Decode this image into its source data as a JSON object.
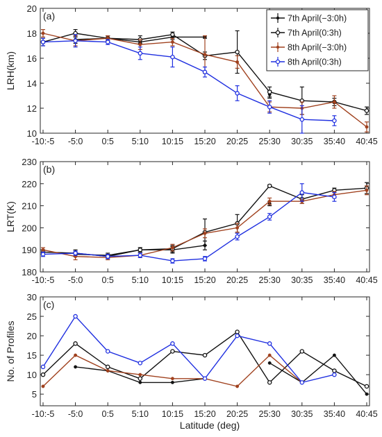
{
  "figure": {
    "xlabel": "Latitude (deg)",
    "categories": [
      "-10:-5",
      "-5:0",
      "0:5",
      "5:10",
      "10:15",
      "15:20",
      "20:25",
      "25:30",
      "30:35",
      "35:40",
      "40:45"
    ]
  },
  "colors": {
    "black": "#111111",
    "brown": "#a0411e",
    "blue": "#1f2fe0"
  },
  "legend": {
    "position": "top-right",
    "entries": [
      "7th April(−3:0h)",
      "7th April(0:3h)",
      "8th April(−3:0h)",
      "8th April(0:3h)"
    ]
  },
  "chart_data": [
    {
      "type": "line",
      "panel_label": "(a)",
      "ylabel": "LRH(km)",
      "ylim": [
        10,
        20
      ],
      "yticks": [
        10,
        12,
        14,
        16,
        18,
        20
      ],
      "categories": [
        "-10:-5",
        "-5:0",
        "0:5",
        "5:10",
        "10:15",
        "15:20",
        "20:25",
        "25:30",
        "30:35",
        "35:40",
        "40:45"
      ],
      "series": [
        {
          "name": "7th April(−3:0h)",
          "color": "black",
          "marker": "dot",
          "values": [
            null,
            17.5,
            17.6,
            17.3,
            17.7,
            17.7,
            null,
            13.1,
            null,
            null,
            null
          ],
          "errors": [
            null,
            0.3,
            0.2,
            0.2,
            0.2,
            0.1,
            null,
            0.3,
            null,
            null,
            null
          ]
        },
        {
          "name": "7th April(0:3h)",
          "color": "black",
          "marker": "circle",
          "values": [
            17.3,
            18.0,
            17.6,
            17.5,
            17.9,
            16.2,
            16.5,
            13.3,
            12.6,
            12.5,
            11.8
          ],
          "errors": [
            0.3,
            0.3,
            0.2,
            0.3,
            0.2,
            0.3,
            1.7,
            0.4,
            1.1,
            0.3,
            0.3
          ]
        },
        {
          "name": "8th April(−3:0h)",
          "color": "brown",
          "marker": "dot",
          "values": [
            18.0,
            17.4,
            17.6,
            17.1,
            17.3,
            16.3,
            15.7,
            12.1,
            12.0,
            12.5,
            10.5
          ],
          "errors": [
            0.3,
            0.4,
            0.2,
            0.4,
            0.3,
            1.5,
            0.5,
            0.4,
            0.5,
            0.5,
            0.4
          ]
        },
        {
          "name": "8th April(0:3h)",
          "color": "blue",
          "marker": "circle",
          "values": [
            17.3,
            17.4,
            17.3,
            16.4,
            16.1,
            14.9,
            13.2,
            12.1,
            11.1,
            11.0,
            null
          ],
          "errors": [
            0.3,
            0.5,
            0.2,
            0.5,
            0.8,
            0.4,
            0.6,
            0.5,
            1.1,
            0.4,
            null
          ]
        }
      ]
    },
    {
      "type": "line",
      "panel_label": "(b)",
      "ylabel": "LRT(K)",
      "ylim": [
        180,
        230
      ],
      "yticks": [
        180,
        190,
        200,
        210,
        220,
        230
      ],
      "categories": [
        "-10:-5",
        "-5:0",
        "0:5",
        "5:10",
        "10:15",
        "15:20",
        "20:25",
        "25:30",
        "30:35",
        "35:40",
        "40:45"
      ],
      "series": [
        {
          "name": "7th April(−3:0h)",
          "color": "black",
          "marker": "dot",
          "values": [
            null,
            188.0,
            187.5,
            190.0,
            190.0,
            192.0,
            null,
            211.0,
            null,
            null,
            null
          ],
          "errors": [
            null,
            1.0,
            1.0,
            1.0,
            1.5,
            2.0,
            null,
            1.0,
            null,
            null,
            null
          ]
        },
        {
          "name": "7th April(0:3h)",
          "color": "black",
          "marker": "circle",
          "values": [
            189.0,
            188.5,
            187.0,
            190.0,
            190.5,
            198.0,
            202.0,
            219.0,
            213.0,
            217.0,
            218.0
          ],
          "errors": [
            1.0,
            1.5,
            1.0,
            1.0,
            1.5,
            6.0,
            4.0,
            0.5,
            2.0,
            1.0,
            2.5
          ]
        },
        {
          "name": "8th April(−3:0h)",
          "color": "brown",
          "marker": "dot",
          "values": [
            190.0,
            187.0,
            186.5,
            187.5,
            191.0,
            197.5,
            200.0,
            212.0,
            212.0,
            215.0,
            217.0
          ],
          "errors": [
            1.0,
            1.5,
            1.0,
            1.0,
            1.5,
            2.0,
            2.0,
            1.5,
            1.0,
            1.5,
            2.0
          ]
        },
        {
          "name": "8th April(0:3h)",
          "color": "blue",
          "marker": "circle",
          "values": [
            188.0,
            188.5,
            187.0,
            187.5,
            185.0,
            186.0,
            196.0,
            205.0,
            216.0,
            214.0,
            null
          ],
          "errors": [
            1.0,
            1.0,
            1.0,
            1.0,
            1.0,
            1.0,
            1.5,
            1.5,
            4.0,
            2.0,
            null
          ]
        }
      ]
    },
    {
      "type": "line",
      "panel_label": "(c)",
      "ylabel": "No. of Profiles",
      "ylim": [
        2,
        30
      ],
      "yticks": [
        5,
        10,
        15,
        20,
        25,
        30
      ],
      "categories": [
        "-10:-5",
        "-5:0",
        "0:5",
        "5:10",
        "10:15",
        "15:20",
        "20:25",
        "25:30",
        "30:35",
        "35:40",
        "40:45"
      ],
      "series": [
        {
          "name": "7th April(−3:0h)",
          "color": "black",
          "marker": "dot",
          "values": [
            null,
            12,
            11,
            8,
            8,
            9,
            null,
            13,
            8,
            15,
            5
          ]
        },
        {
          "name": "7th April(0:3h)",
          "color": "black",
          "marker": "circle",
          "values": [
            10,
            18,
            12,
            9,
            16,
            15,
            21,
            8,
            16,
            11,
            7
          ]
        },
        {
          "name": "8th April(−3:0h)",
          "color": "brown",
          "marker": "dot",
          "values": [
            7,
            15,
            11,
            10,
            9,
            9,
            7,
            15,
            8,
            null,
            null
          ]
        },
        {
          "name": "8th April(0:3h)",
          "color": "blue",
          "marker": "circle",
          "values": [
            12,
            25,
            16,
            13,
            18,
            9,
            20,
            18,
            8,
            10,
            null
          ]
        }
      ]
    }
  ]
}
